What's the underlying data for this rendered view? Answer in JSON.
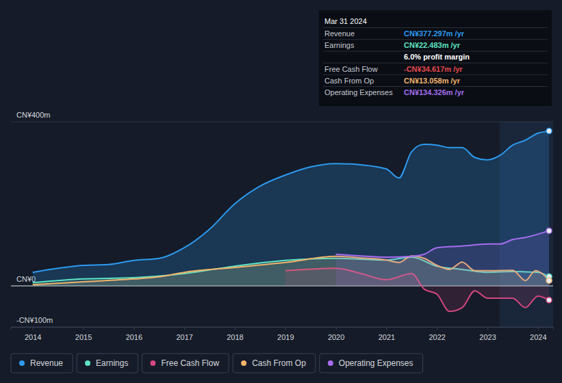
{
  "chart_data": {
    "type": "area",
    "xlim": [
      2013.57,
      2024.3
    ],
    "xticks": [
      2014,
      2015,
      2016,
      2017,
      2018,
      2019,
      2020,
      2021,
      2022,
      2023,
      2024
    ],
    "ylim": [
      -100,
      400
    ],
    "yticks": [
      {
        "value": -100,
        "label": "-CN¥100m"
      },
      {
        "value": 0,
        "label": "CN¥0"
      },
      {
        "value": 400,
        "label": "CN¥400m"
      }
    ],
    "grid": true,
    "legend": "bottom",
    "shaded_x": [
      2023.24,
      2024.3
    ],
    "series": [
      {
        "name": "Revenue",
        "color": "#2d9bf0",
        "x": [
          2014,
          2014.5,
          2015,
          2015.5,
          2016,
          2016.5,
          2017,
          2017.5,
          2018,
          2018.5,
          2019,
          2019.5,
          2020,
          2020.5,
          2021,
          2021.25,
          2021.5,
          2021.75,
          2022,
          2022.25,
          2022.5,
          2022.75,
          2023,
          2023.25,
          2023.5,
          2023.75,
          2024,
          2024.22
        ],
        "values": [
          33,
          43,
          50,
          52,
          62,
          67,
          93,
          138,
          200,
          243,
          270,
          290,
          298,
          295,
          285,
          263,
          327,
          345,
          343,
          337,
          337,
          313,
          307,
          318,
          343,
          355,
          372,
          377.297
        ]
      },
      {
        "name": "Earnings",
        "color": "#5fe3c3",
        "x": [
          2014,
          2015,
          2016,
          2017,
          2018,
          2019,
          2020,
          2021,
          2021.5,
          2022,
          2022.5,
          2023,
          2023.5,
          2024,
          2024.22
        ],
        "values": [
          8,
          17,
          20,
          30,
          48,
          62,
          67,
          63,
          70,
          48,
          40,
          33,
          35,
          33,
          22.483
        ]
      },
      {
        "name": "Free Cash Flow",
        "color": "#d4477f",
        "x": [
          2019,
          2020,
          2020.5,
          2021,
          2021.5,
          2021.75,
          2022,
          2022.25,
          2022.5,
          2022.75,
          2023,
          2023.5,
          2023.75,
          2024,
          2024.22
        ],
        "values": [
          37,
          43,
          30,
          15,
          30,
          -8,
          -20,
          -62,
          -53,
          -12,
          -30,
          -30,
          -53,
          -25,
          -34.617
        ]
      },
      {
        "name": "Cash From Op",
        "color": "#f2b46c",
        "x": [
          2014,
          2015,
          2016,
          2016.5,
          2017,
          2018,
          2019,
          2020,
          2020.5,
          2021,
          2021.25,
          2021.5,
          2021.75,
          2022,
          2022.25,
          2022.5,
          2022.75,
          2023,
          2023.5,
          2023.75,
          2023.95,
          2024.22
        ],
        "values": [
          3,
          10,
          17,
          22,
          33,
          45,
          57,
          72,
          68,
          63,
          57,
          73,
          67,
          50,
          40,
          58,
          37,
          37,
          38,
          13,
          37,
          13.058
        ]
      },
      {
        "name": "Operating Expenses",
        "color": "#a66df0",
        "x": [
          2020,
          2020.5,
          2021,
          2021.5,
          2021.75,
          2022,
          2022.5,
          2023,
          2023.25,
          2023.5,
          2023.75,
          2024.22
        ],
        "values": [
          77,
          73,
          70,
          72,
          77,
          93,
          97,
          102,
          102,
          113,
          118,
          134.326
        ]
      }
    ],
    "tooltip": {
      "title": "Mar 31 2024",
      "rows": [
        {
          "label": "Revenue",
          "value": "CN¥377.297m /yr",
          "color": "#2d9bf0"
        },
        {
          "label": "Earnings",
          "value": "CN¥22.483m /yr",
          "color": "#5fe3c3"
        },
        {
          "label": null,
          "value": "6.0% profit margin",
          "color": "#ffffff"
        },
        {
          "label": "Free Cash Flow",
          "value": "-CN¥34.617m /yr",
          "color": "#e5484d"
        },
        {
          "label": "Cash From Op",
          "value": "CN¥13.058m /yr",
          "color": "#f2b46c"
        },
        {
          "label": "Operating Expenses",
          "value": "CN¥134.326m /yr",
          "color": "#a66df0"
        }
      ]
    }
  }
}
